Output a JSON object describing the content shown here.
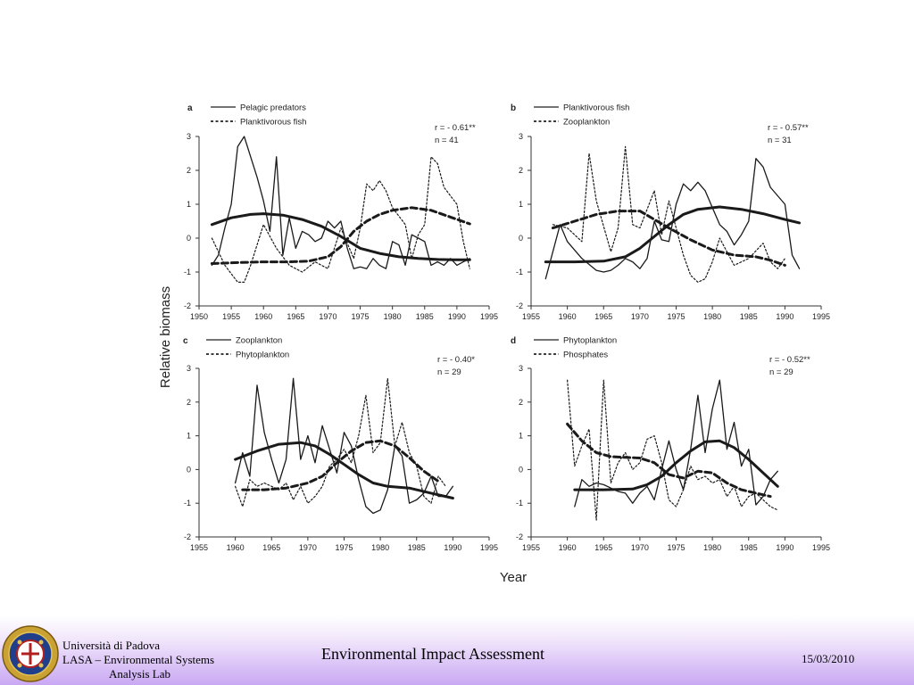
{
  "figure": {
    "ylabel": "Relative biomass",
    "xlabel": "Year"
  },
  "footer": {
    "university": "Università di Padova",
    "lab_line1": "LASA – Environmental Systems",
    "lab_line2": "Analysis Lab",
    "title": "Environmental Impact Assessment",
    "date": "15/03/2010",
    "logo_icon": "university-seal-icon"
  },
  "chart_data": [
    {
      "type": "line",
      "panel": "a",
      "stat_r": "r = - 0.61**",
      "stat_n": "n =  41",
      "xlim": [
        1950,
        1995
      ],
      "ylim": [
        -2,
        3
      ],
      "xticks": [
        "1950",
        "1955",
        "1960",
        "1965",
        "1970",
        "1975",
        "1980",
        "1985",
        "1990",
        "1995"
      ],
      "yticks": [
        "-2",
        "-1",
        "0",
        "1",
        "2",
        "3"
      ],
      "series": [
        {
          "name": "Pelagic predators",
          "style": "solid-thin",
          "x": [
            1952,
            1953,
            1954,
            1955,
            1956,
            1957,
            1958,
            1959,
            1960,
            1961,
            1962,
            1963,
            1964,
            1965,
            1966,
            1967,
            1968,
            1969,
            1970,
            1971,
            1972,
            1973,
            1974,
            1975,
            1976,
            1977,
            1978,
            1979,
            1980,
            1981,
            1982,
            1983,
            1984,
            1985,
            1986,
            1987,
            1988,
            1989,
            1990,
            1991,
            1992
          ],
          "y": [
            -0.8,
            -0.5,
            0.3,
            1.0,
            2.7,
            3.0,
            2.4,
            1.8,
            1.1,
            0.2,
            2.4,
            -0.5,
            0.6,
            -0.3,
            0.2,
            0.1,
            -0.1,
            0.0,
            0.5,
            0.3,
            0.5,
            -0.3,
            -0.9,
            -0.85,
            -0.9,
            -0.6,
            -0.8,
            -0.9,
            -0.1,
            -0.2,
            -0.8,
            0.1,
            0.0,
            -0.1,
            -0.8,
            -0.7,
            -0.8,
            -0.6,
            -0.8,
            -0.7,
            -0.6
          ]
        },
        {
          "name": "Planktivorous fish",
          "style": "dotted",
          "x": [
            1952,
            1954,
            1956,
            1957,
            1958,
            1960,
            1962,
            1964,
            1966,
            1968,
            1970,
            1972,
            1974,
            1975,
            1976,
            1977,
            1978,
            1979,
            1980,
            1982,
            1983,
            1984,
            1985,
            1986,
            1987,
            1988,
            1990,
            1991,
            1992
          ],
          "y": [
            0.0,
            -0.8,
            -1.3,
            -1.3,
            -0.8,
            0.4,
            -0.3,
            -0.8,
            -1.0,
            -0.7,
            -0.9,
            0.3,
            -0.6,
            0.3,
            1.6,
            1.4,
            1.7,
            1.4,
            0.9,
            0.4,
            -0.6,
            0.1,
            0.4,
            2.4,
            2.2,
            1.5,
            1.0,
            -0.1,
            -0.9
          ]
        },
        {
          "name": "",
          "style": "trend-solid",
          "x": [
            1952,
            1955,
            1958,
            1960,
            1963,
            1966,
            1969,
            1972,
            1975,
            1978,
            1981,
            1984,
            1987,
            1990,
            1992
          ],
          "y": [
            0.4,
            0.6,
            0.7,
            0.72,
            0.68,
            0.55,
            0.35,
            0.05,
            -0.3,
            -0.45,
            -0.55,
            -0.6,
            -0.63,
            -0.64,
            -0.64
          ]
        },
        {
          "name": "",
          "style": "trend-dashed",
          "x": [
            1952,
            1956,
            1960,
            1964,
            1967,
            1970,
            1972,
            1974,
            1976,
            1978,
            1980,
            1983,
            1986,
            1989,
            1992
          ],
          "y": [
            -0.75,
            -0.72,
            -0.7,
            -0.7,
            -0.68,
            -0.55,
            -0.25,
            0.2,
            0.5,
            0.7,
            0.82,
            0.9,
            0.82,
            0.62,
            0.42
          ]
        }
      ]
    },
    {
      "type": "line",
      "panel": "b",
      "stat_r": "r = - 0.57**",
      "stat_n": "n =  31",
      "xlim": [
        1955,
        1995
      ],
      "ylim": [
        -2,
        3
      ],
      "xticks": [
        "1955",
        "1960",
        "1965",
        "1970",
        "1975",
        "1980",
        "1985",
        "1990",
        "1995"
      ],
      "yticks": [
        "-2",
        "-1",
        "0",
        "1",
        "2",
        "3"
      ],
      "series": [
        {
          "name": "Planktivorous fish",
          "style": "solid-thin",
          "x": [
            1957,
            1959,
            1960,
            1962,
            1964,
            1965,
            1966,
            1967,
            1968,
            1969,
            1970,
            1971,
            1972,
            1973,
            1974,
            1975,
            1976,
            1977,
            1978,
            1979,
            1980,
            1981,
            1982,
            1983,
            1984,
            1985,
            1986,
            1987,
            1988,
            1990,
            1991,
            1992
          ],
          "y": [
            -1.2,
            0.4,
            -0.1,
            -0.6,
            -0.95,
            -1.0,
            -0.95,
            -0.8,
            -0.6,
            -0.7,
            -0.9,
            -0.6,
            0.5,
            -0.05,
            -0.1,
            1.0,
            1.6,
            1.4,
            1.65,
            1.4,
            0.9,
            0.4,
            0.2,
            -0.2,
            0.1,
            0.5,
            2.35,
            2.1,
            1.5,
            1.0,
            -0.5,
            -0.9
          ]
        },
        {
          "name": "Zooplankton",
          "style": "dotted",
          "x": [
            1958,
            1960,
            1962,
            1963,
            1964,
            1966,
            1967,
            1968,
            1969,
            1970,
            1972,
            1973,
            1974,
            1975,
            1976,
            1977,
            1978,
            1979,
            1980,
            1981,
            1983,
            1985,
            1987,
            1988,
            1989,
            1990
          ],
          "y": [
            0.4,
            0.3,
            -0.1,
            2.5,
            1.1,
            -0.4,
            0.3,
            2.7,
            0.4,
            0.3,
            1.4,
            0.1,
            1.1,
            0.3,
            -0.5,
            -1.1,
            -1.3,
            -1.2,
            -0.7,
            0.0,
            -0.8,
            -0.6,
            -0.15,
            -0.7,
            -0.9,
            -0.6
          ]
        },
        {
          "name": "",
          "style": "trend-solid",
          "x": [
            1957,
            1961,
            1965,
            1968,
            1970,
            1972,
            1974,
            1976,
            1978,
            1981,
            1984,
            1987,
            1990,
            1992
          ],
          "y": [
            -0.7,
            -0.7,
            -0.68,
            -0.55,
            -0.3,
            0.05,
            0.4,
            0.7,
            0.85,
            0.92,
            0.85,
            0.72,
            0.55,
            0.45
          ]
        },
        {
          "name": "",
          "style": "trend-dashed",
          "x": [
            1958,
            1961,
            1964,
            1967,
            1970,
            1972,
            1974,
            1977,
            1980,
            1983,
            1986,
            1988,
            1990
          ],
          "y": [
            0.3,
            0.5,
            0.7,
            0.8,
            0.8,
            0.55,
            0.3,
            -0.05,
            -0.35,
            -0.5,
            -0.55,
            -0.65,
            -0.8
          ]
        }
      ]
    },
    {
      "type": "line",
      "panel": "c",
      "stat_r": "r = - 0.40*",
      "stat_n": "n =  29",
      "xlim": [
        1955,
        1995
      ],
      "ylim": [
        -2,
        3
      ],
      "xticks": [
        "1955",
        "1960",
        "1965",
        "1970",
        "1975",
        "1980",
        "1985",
        "1990",
        "1995"
      ],
      "yticks": [
        "-2",
        "-1",
        "0",
        "1",
        "2",
        "3"
      ],
      "series": [
        {
          "name": "Zooplankton",
          "style": "solid-thin",
          "x": [
            1960,
            1961,
            1962,
            1963,
            1964,
            1965,
            1966,
            1967,
            1968,
            1969,
            1970,
            1971,
            1972,
            1973,
            1974,
            1975,
            1976,
            1977,
            1978,
            1979,
            1980,
            1981,
            1982,
            1983,
            1984,
            1985,
            1986,
            1987,
            1988,
            1989,
            1990
          ],
          "y": [
            -0.4,
            0.5,
            -0.2,
            2.5,
            1.1,
            0.3,
            -0.4,
            0.3,
            2.7,
            0.3,
            1.0,
            0.2,
            1.3,
            0.6,
            -0.1,
            1.1,
            0.7,
            -0.3,
            -1.1,
            -1.3,
            -1.2,
            -0.6,
            0.7,
            0.4,
            -1.0,
            -0.9,
            -0.7,
            -0.2,
            -0.8,
            -0.8,
            -0.5
          ]
        },
        {
          "name": "Phytoplankton",
          "style": "dotted",
          "x": [
            1960,
            1961,
            1962,
            1963,
            1964,
            1965,
            1966,
            1967,
            1968,
            1969,
            1970,
            1971,
            1972,
            1973,
            1974,
            1975,
            1976,
            1977,
            1978,
            1979,
            1980,
            1981,
            1982,
            1983,
            1984,
            1985,
            1986,
            1987,
            1988,
            1989
          ],
          "y": [
            -0.5,
            -1.1,
            -0.3,
            -0.5,
            -0.4,
            -0.5,
            -0.6,
            -0.4,
            -0.9,
            -0.5,
            -1.0,
            -0.8,
            -0.5,
            0.1,
            0.3,
            0.6,
            0.2,
            1.0,
            2.2,
            0.5,
            0.8,
            2.7,
            0.7,
            1.4,
            0.5,
            0.1,
            -0.8,
            -1.0,
            -0.2,
            -0.5
          ]
        },
        {
          "name": "",
          "style": "trend-solid",
          "x": [
            1960,
            1963,
            1966,
            1969,
            1971,
            1973,
            1975,
            1977,
            1979,
            1981,
            1984,
            1987,
            1990
          ],
          "y": [
            0.3,
            0.55,
            0.75,
            0.8,
            0.7,
            0.45,
            0.15,
            -0.15,
            -0.4,
            -0.5,
            -0.55,
            -0.7,
            -0.85
          ]
        },
        {
          "name": "",
          "style": "trend-dashed",
          "x": [
            1961,
            1964,
            1967,
            1970,
            1972,
            1974,
            1976,
            1978,
            1980,
            1982,
            1984,
            1986,
            1988
          ],
          "y": [
            -0.6,
            -0.6,
            -0.55,
            -0.4,
            -0.2,
            0.2,
            0.55,
            0.8,
            0.85,
            0.7,
            0.35,
            -0.05,
            -0.35
          ]
        }
      ]
    },
    {
      "type": "line",
      "panel": "d",
      "stat_r": "r = - 0.52**",
      "stat_n": "n =  29",
      "xlim": [
        1955,
        1995
      ],
      "ylim": [
        -2,
        3
      ],
      "xticks": [
        "1955",
        "1960",
        "1965",
        "1970",
        "1975",
        "1980",
        "1985",
        "1990",
        "1995"
      ],
      "yticks": [
        "-2",
        "-1",
        "0",
        "1",
        "2",
        "3"
      ],
      "series": [
        {
          "name": "Phytoplankton",
          "style": "solid-thin",
          "x": [
            1961,
            1962,
            1963,
            1964,
            1965,
            1966,
            1967,
            1968,
            1969,
            1970,
            1971,
            1972,
            1973,
            1974,
            1975,
            1976,
            1977,
            1978,
            1979,
            1980,
            1981,
            1982,
            1983,
            1984,
            1985,
            1986,
            1987,
            1988,
            1989
          ],
          "y": [
            -1.1,
            -0.3,
            -0.5,
            -0.4,
            -0.45,
            -0.55,
            -0.65,
            -0.7,
            -1.0,
            -0.7,
            -0.5,
            -0.9,
            0.0,
            0.85,
            0.0,
            -0.6,
            0.6,
            2.2,
            0.5,
            1.8,
            2.65,
            0.6,
            1.4,
            0.1,
            0.6,
            -1.05,
            -0.8,
            -0.3,
            -0.05
          ]
        },
        {
          "name": "Phosphates",
          "style": "dotted",
          "x": [
            1960,
            1961,
            1962,
            1963,
            1964,
            1965,
            1966,
            1967,
            1968,
            1969,
            1970,
            1971,
            1972,
            1973,
            1974,
            1975,
            1976,
            1977,
            1978,
            1979,
            1980,
            1981,
            1982,
            1983,
            1984,
            1985,
            1986,
            1987,
            1988,
            1989
          ],
          "y": [
            2.65,
            0.1,
            0.7,
            1.2,
            -1.5,
            2.65,
            -0.4,
            0.2,
            0.5,
            0.0,
            0.2,
            0.9,
            1.0,
            0.2,
            -0.9,
            -1.1,
            -0.6,
            0.1,
            -0.3,
            -0.2,
            -0.4,
            -0.3,
            -0.8,
            -0.5,
            -1.1,
            -0.8,
            -0.7,
            -0.9,
            -1.1,
            -1.2
          ]
        },
        {
          "name": "",
          "style": "trend-solid",
          "x": [
            1961,
            1965,
            1969,
            1971,
            1973,
            1975,
            1977,
            1979,
            1981,
            1983,
            1985,
            1987,
            1989
          ],
          "y": [
            -0.6,
            -0.6,
            -0.58,
            -0.45,
            -0.2,
            0.2,
            0.55,
            0.82,
            0.85,
            0.65,
            0.3,
            -0.1,
            -0.5
          ]
        },
        {
          "name": "",
          "style": "trend-dashed",
          "x": [
            1960,
            1962,
            1964,
            1966,
            1968,
            1970,
            1972,
            1974,
            1976,
            1978,
            1980,
            1982,
            1984,
            1986,
            1988
          ],
          "y": [
            1.35,
            0.85,
            0.5,
            0.38,
            0.36,
            0.34,
            0.2,
            -0.15,
            -0.25,
            -0.05,
            -0.1,
            -0.4,
            -0.6,
            -0.7,
            -0.8
          ]
        }
      ]
    }
  ]
}
